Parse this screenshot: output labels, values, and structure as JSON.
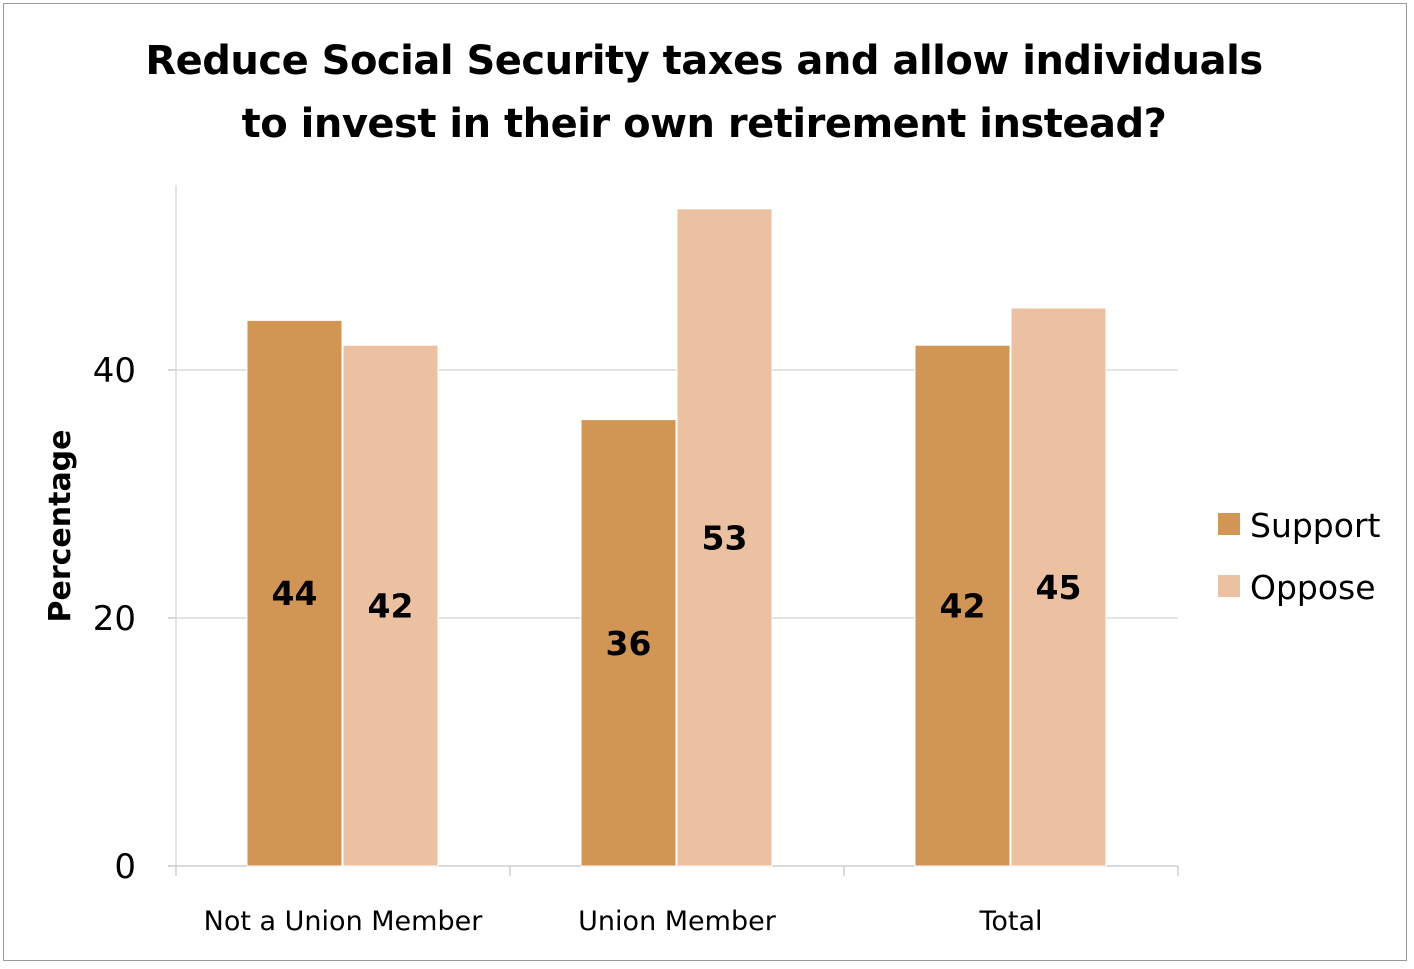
{
  "chart_data": {
    "type": "bar",
    "title": "Reduce Social Security taxes and allow individuals to invest in their own retirement instead?",
    "title_lines": [
      "Reduce Social Security taxes and allow individuals",
      "to invest in their own retirement instead?"
    ],
    "xlabel": "",
    "ylabel": "Percentage",
    "categories": [
      "Not a Union Member",
      "Union Member",
      "Total"
    ],
    "series": [
      {
        "name": "Support",
        "values": [
          44,
          36,
          42
        ],
        "color": "#d19654"
      },
      {
        "name": "Oppose",
        "values": [
          42,
          53,
          45
        ],
        "color": "#ecc1a2"
      }
    ],
    "data_labels": [
      [
        "44",
        "36",
        "42"
      ],
      [
        "42",
        "53",
        "45"
      ]
    ],
    "yticks": [
      0,
      20,
      40
    ],
    "ytick_labels": [
      "0",
      "20",
      "40"
    ],
    "ylim": [
      0,
      55
    ],
    "grid": true,
    "legend_position": "right"
  }
}
